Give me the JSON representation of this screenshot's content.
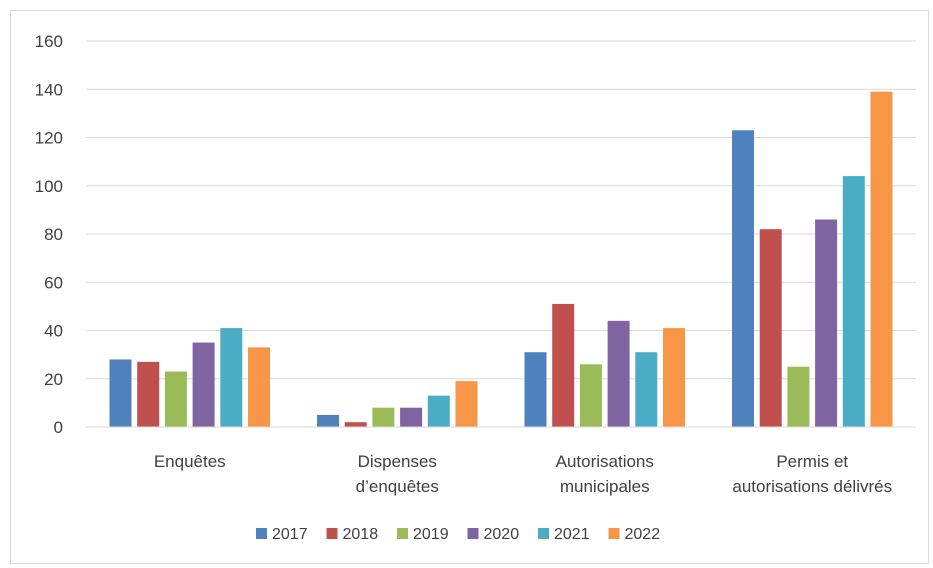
{
  "chart_data": {
    "type": "bar",
    "title": "",
    "xlabel": "",
    "ylabel": "",
    "ylim": [
      0,
      160
    ],
    "y_ticks": [
      0,
      20,
      40,
      60,
      80,
      100,
      120,
      140,
      160
    ],
    "grid": true,
    "legend_position": "bottom",
    "categories": [
      [
        "Enquêtes"
      ],
      [
        "Dispenses",
        "d’enquêtes"
      ],
      [
        "Autorisations",
        "municipales"
      ],
      [
        "Permis et",
        "autorisations délivrés"
      ]
    ],
    "series": [
      {
        "name": "2017",
        "color": "#4f81bd",
        "values": [
          28,
          5,
          31,
          123
        ]
      },
      {
        "name": "2018",
        "color": "#c0504d",
        "values": [
          27,
          2,
          51,
          82
        ]
      },
      {
        "name": "2019",
        "color": "#9bbb59",
        "values": [
          23,
          8,
          26,
          25
        ]
      },
      {
        "name": "2020",
        "color": "#8064a2",
        "values": [
          35,
          8,
          44,
          86
        ]
      },
      {
        "name": "2021",
        "color": "#4bacc6",
        "values": [
          41,
          13,
          31,
          104
        ]
      },
      {
        "name": "2022",
        "color": "#f79646",
        "values": [
          33,
          19,
          41,
          139
        ]
      }
    ]
  }
}
